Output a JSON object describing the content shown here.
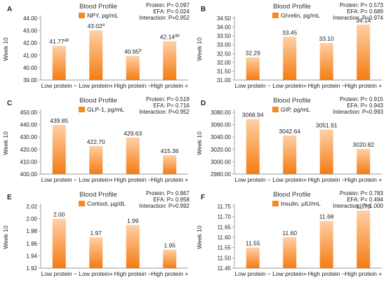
{
  "chart_data": [
    {
      "panel": "A",
      "type": "bar",
      "title": "Blood Profile",
      "legend": "NPY, pg/mL",
      "ylabel": "Week 10",
      "stats": [
        "Protein: P= 0.097",
        "EFA: P= 0.024",
        "Interaction: P=0.952"
      ],
      "categories": [
        "Low protein −",
        "Low protein+",
        "High protein −",
        "High protein +"
      ],
      "values": [
        41.77,
        43.02,
        40.95,
        42.14
      ],
      "labels": [
        "41.77",
        "43.02",
        "40.95",
        "42.14"
      ],
      "superscripts": [
        "ab",
        "a",
        "b",
        "ab"
      ],
      "ylim": [
        39.0,
        44.0
      ],
      "ticks": [
        "39.00",
        "40.00",
        "41.00",
        "42.00",
        "43.00",
        "44.00"
      ]
    },
    {
      "panel": "B",
      "type": "bar",
      "title": "Blood Profile",
      "legend": "Ghrelin, pg/mL",
      "ylabel": "Week 10",
      "stats": [
        "Protein: P= 0.573",
        "EFA: P= 0.689",
        "Interaction: P=0.974"
      ],
      "categories": [
        "Low protein −",
        "Low protein+",
        "High protein −",
        "High protein +"
      ],
      "values": [
        32.29,
        33.45,
        33.1,
        34.14
      ],
      "labels": [
        "32.29",
        "33.45",
        "33.10",
        "34.14"
      ],
      "superscripts": [
        "",
        "",
        "",
        ""
      ],
      "ylim": [
        31.0,
        34.5
      ],
      "ticks": [
        "31.00",
        "31.50",
        "32.00",
        "32.50",
        "33.00",
        "33.50",
        "34.00",
        "34.50"
      ]
    },
    {
      "panel": "C",
      "type": "bar",
      "title": "Blood Profile",
      "legend": "GLP-1, pg/mL",
      "ylabel": "Week 10",
      "stats": [
        "Protein: P= 0.519",
        "EFA: P= 0.716",
        "Interaction: P=0.952"
      ],
      "categories": [
        "Low protein −",
        "Low protein+",
        "High protein −",
        "High protein +"
      ],
      "values": [
        439.85,
        422.7,
        429.63,
        415.36
      ],
      "labels": [
        "439.85",
        "422.70",
        "429.63",
        "415.36"
      ],
      "superscripts": [
        "",
        "",
        "",
        ""
      ],
      "ylim": [
        400,
        450
      ],
      "ticks": [
        "400.00",
        "410.00",
        "420.00",
        "430.00",
        "440.00",
        "450.00"
      ]
    },
    {
      "panel": "D",
      "type": "bar",
      "title": "Blood Profile",
      "legend": "GIP, pg/mL",
      "ylabel": "Week 10",
      "stats": [
        "Protein: P= 0.915",
        "EFA: P= 0.943",
        "Interaction: P=0.993"
      ],
      "categories": [
        "Low protein −",
        "Low protein+",
        "High protein −",
        "High protein +"
      ],
      "values": [
        3068.94,
        3042.64,
        3051.91,
        3020.82
      ],
      "labels": [
        "3068.94",
        "3042.64",
        "3051.91",
        "3020.82"
      ],
      "superscripts": [
        "",
        "",
        "",
        ""
      ],
      "ylim": [
        2980,
        3080
      ],
      "ticks": [
        "2980.00",
        "3000.00",
        "3020.00",
        "3040.00",
        "3060.00",
        "3080.00"
      ]
    },
    {
      "panel": "E",
      "type": "bar",
      "title": "Blood Profile",
      "legend": "Cortisol, µg/dL",
      "ylabel": "Week 10",
      "stats": [
        "Protein: P= 0.867",
        "EFA: P= 0.958",
        "Interaction: P=0.992"
      ],
      "categories": [
        "Low protein −",
        "Low protein+",
        "High protein −",
        "High protein +"
      ],
      "values": [
        2.0,
        1.97,
        1.99,
        1.95
      ],
      "labels": [
        "2.00",
        "1.97",
        "1.99",
        "1.95"
      ],
      "superscripts": [
        "",
        "",
        "",
        ""
      ],
      "ylim": [
        1.92,
        2.02
      ],
      "ticks": [
        "1.92",
        "1.94",
        "1.96",
        "1.98",
        "2.00",
        "2.02"
      ]
    },
    {
      "panel": "F",
      "type": "bar",
      "title": "Blood Profile",
      "legend": "Insulin, µIU/mL",
      "ylabel": "Week 10",
      "stats": [
        "Protein: P= 0.783",
        "EFA: P= 0.494",
        "Interaction: P=1.000"
      ],
      "categories": [
        "Low protein −",
        "Low protein+",
        "High protein −",
        "High protein +"
      ],
      "values": [
        11.55,
        11.6,
        11.68,
        11.73
      ],
      "labels": [
        "11.55",
        "11.60",
        "11.68",
        "11.73"
      ],
      "superscripts": [
        "",
        "",
        "",
        ""
      ],
      "ylim": [
        11.45,
        11.75
      ],
      "ticks": [
        "11.45",
        "11.50",
        "11.55",
        "11.60",
        "11.65",
        "11.70",
        "11.75"
      ]
    }
  ],
  "colors": {
    "bar_top": "#ffd0a6",
    "bar_bottom": "#f47c12",
    "axis": "#9a9a9a",
    "text": "#222222",
    "legend_swatch": "#f7891f"
  }
}
